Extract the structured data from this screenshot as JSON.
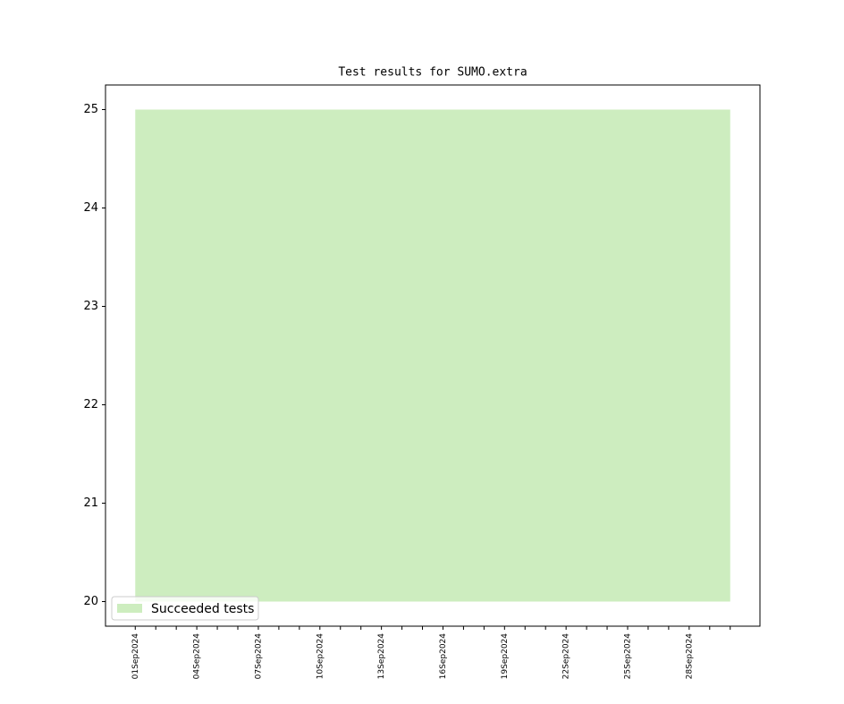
{
  "chart_data": {
    "type": "area",
    "title": "Test results for SUMO.extra",
    "categories": [
      "01Sep2024",
      null,
      null,
      "04Sep2024",
      null,
      null,
      "07Sep2024",
      null,
      null,
      "10Sep2024",
      null,
      null,
      "13Sep2024",
      null,
      null,
      "16Sep2024",
      null,
      null,
      "19Sep2024",
      null,
      null,
      "22Sep2024",
      null,
      null,
      "25Sep2024",
      null,
      null,
      "28Sep2024",
      null,
      null
    ],
    "series": [
      {
        "name": "Succeeded tests",
        "color": "#cdedbf",
        "base": 20,
        "values": [
          25,
          25,
          25,
          25,
          25,
          25,
          25,
          25,
          25,
          25,
          25,
          25,
          25,
          25,
          25,
          25,
          25,
          25,
          25,
          25,
          25,
          25,
          25,
          25,
          25,
          25,
          25,
          25,
          25,
          25
        ]
      }
    ],
    "ylim": [
      19.75,
      25.25
    ],
    "yticks": [
      20,
      21,
      22,
      23,
      24,
      25
    ],
    "legend": "lower left"
  }
}
